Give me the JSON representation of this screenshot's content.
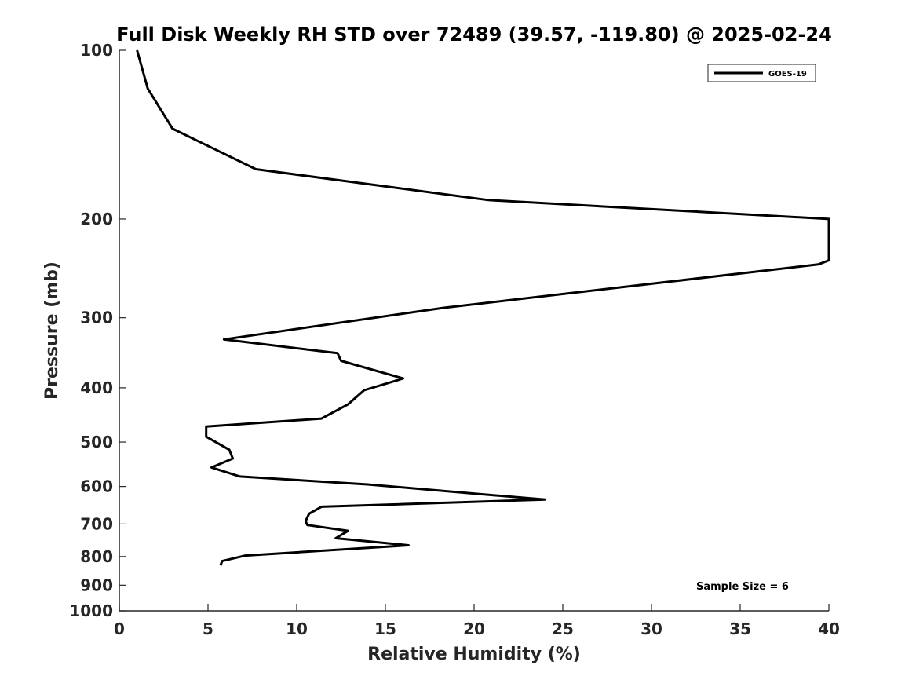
{
  "chart_data": {
    "type": "line",
    "title": "Full Disk Weekly RH STD over 72489 (39.57, -119.80) @ 2025-02-24",
    "xlabel": "Relative Humidity (%)",
    "ylabel": "Pressure (mb)",
    "xlim": [
      0,
      40
    ],
    "ylim": [
      100,
      1000
    ],
    "yscale": "log",
    "yreversed": true,
    "grid": false,
    "legend_position": "top-right",
    "xticks": [
      0,
      5,
      10,
      15,
      20,
      25,
      30,
      35,
      40
    ],
    "xtick_labels": [
      "0",
      "5",
      "10",
      "15",
      "20",
      "25",
      "30",
      "35",
      "40"
    ],
    "yticks": [
      100,
      200,
      300,
      400,
      500,
      600,
      700,
      800,
      900,
      1000
    ],
    "ytick_labels": [
      "100",
      "200",
      "300",
      "400",
      "500",
      "600",
      "700",
      "800",
      "900",
      "1000"
    ],
    "annotation": "Sample Size = 6",
    "series": [
      {
        "name": "GOES-19",
        "color": "#000000",
        "x": [
          1.0,
          1.6,
          3.0,
          7.7,
          20.8,
          40.0,
          40.0,
          39.4,
          18.3,
          5.9,
          12.3,
          12.5,
          16.0,
          13.8,
          12.9,
          11.4,
          4.9,
          4.9,
          6.2,
          6.4,
          5.2,
          6.8,
          14.0,
          20.3,
          24.0,
          11.4,
          10.7,
          10.5,
          10.6,
          12.9,
          12.2,
          16.3,
          7.1,
          5.8,
          5.7
        ],
        "y": [
          100,
          117,
          138,
          163,
          185,
          200,
          237,
          241,
          288,
          328,
          347,
          358,
          385,
          404,
          428,
          454,
          469,
          489,
          516,
          535,
          555,
          576,
          595,
          619,
          633,
          652,
          671,
          692,
          703,
          720,
          742,
          764,
          797,
          815,
          830
        ]
      }
    ]
  }
}
